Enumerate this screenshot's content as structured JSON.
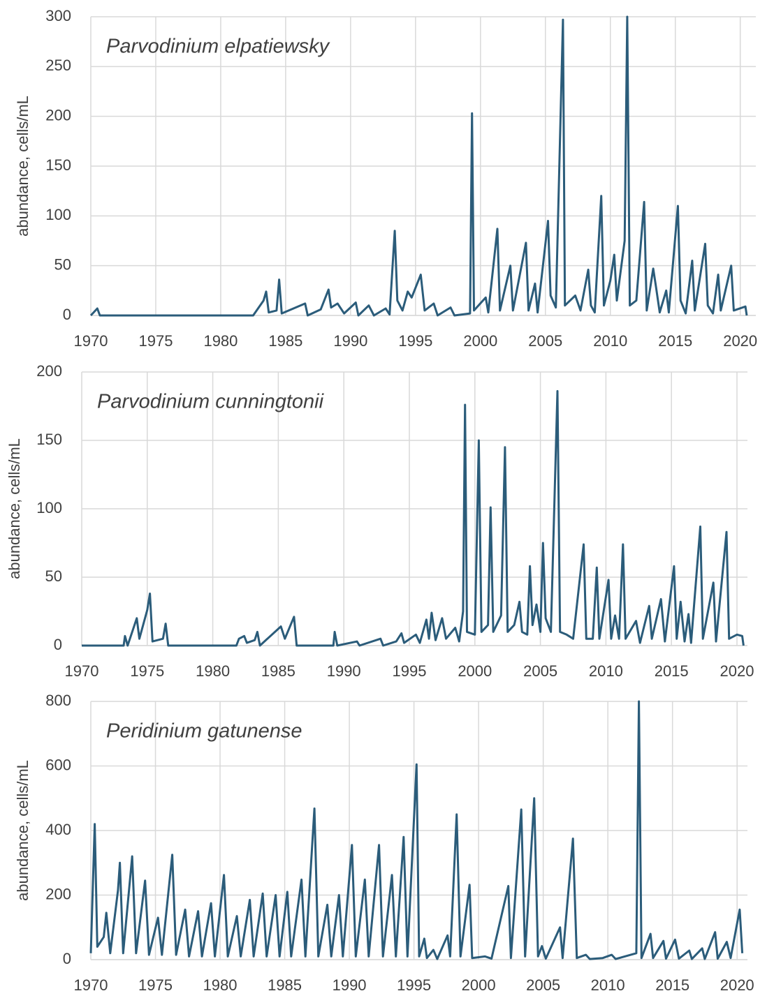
{
  "chart_data": [
    {
      "type": "line",
      "title": "Parvodinium elpatiewsky",
      "ylabel": "abundance, cells/mL",
      "color": "#2b5c7a",
      "grid": true,
      "xlim": [
        1970,
        2021.2
      ],
      "xticks": [
        1970,
        1975,
        1980,
        1985,
        1990,
        1995,
        2000,
        2005,
        2010,
        2015,
        2020
      ],
      "ylim": [
        0,
        300
      ],
      "yticks": [
        0,
        50,
        100,
        150,
        200,
        250,
        300
      ],
      "x": [
        1970.0,
        1970.5,
        1970.7,
        1982.5,
        1983.3,
        1983.5,
        1983.7,
        1984.3,
        1984.5,
        1984.7,
        1986.5,
        1986.7,
        1987.7,
        1988.3,
        1988.5,
        1989.0,
        1989.5,
        1990.4,
        1990.6,
        1991.4,
        1991.8,
        1992.7,
        1993.0,
        1993.4,
        1993.6,
        1994.0,
        1994.4,
        1994.7,
        1995.4,
        1995.7,
        1996.4,
        1996.7,
        1997.7,
        1998.0,
        1999.2,
        1999.35,
        1999.5,
        2000.4,
        2000.6,
        2001.3,
        2001.5,
        2002.3,
        2002.5,
        2003.5,
        2003.7,
        2004.2,
        2004.4,
        2005.2,
        2005.4,
        2005.8,
        2006.35,
        2006.5,
        2007.3,
        2007.7,
        2008.3,
        2008.5,
        2008.8,
        2009.3,
        2009.5,
        2010.0,
        2010.3,
        2010.5,
        2011.1,
        2011.3,
        2011.5,
        2012.0,
        2012.6,
        2012.8,
        2013.3,
        2013.5,
        2013.8,
        2014.3,
        2014.5,
        2015.2,
        2015.4,
        2015.8,
        2016.3,
        2016.5,
        2017.3,
        2017.5,
        2017.9,
        2018.3,
        2018.5,
        2019.3,
        2019.5,
        2020.4,
        2020.5
      ],
      "values": [
        0,
        7,
        0,
        0,
        15,
        24,
        3,
        5,
        36,
        2,
        12,
        0,
        6,
        26,
        8,
        12,
        2,
        13,
        0,
        10,
        0,
        7,
        1,
        85,
        15,
        5,
        24,
        18,
        41,
        5,
        12,
        0,
        8,
        0,
        2,
        203,
        5,
        18,
        3,
        87,
        5,
        50,
        5,
        73,
        5,
        32,
        3,
        95,
        20,
        8,
        297,
        10,
        20,
        5,
        46,
        10,
        3,
        120,
        10,
        35,
        61,
        15,
        75,
        300,
        10,
        15,
        114,
        5,
        47,
        30,
        3,
        25,
        3,
        110,
        15,
        2,
        55,
        5,
        72,
        10,
        2,
        41,
        5,
        50,
        5,
        9,
        0
      ]
    },
    {
      "type": "line",
      "title": "Parvodinium cunningtonii",
      "ylabel": "abundance, cells/mL",
      "color": "#2b5c7a",
      "grid": true,
      "xlim": [
        1970,
        2020.8
      ],
      "xticks": [
        1970,
        1975,
        1980,
        1985,
        1990,
        1995,
        2000,
        2005,
        2010,
        2015,
        2020
      ],
      "ylim": [
        0,
        200
      ],
      "yticks": [
        0,
        50,
        100,
        150,
        200
      ],
      "x": [
        1970.0,
        1973.2,
        1973.3,
        1973.5,
        1974.2,
        1974.4,
        1975.0,
        1975.2,
        1975.4,
        1976.2,
        1976.4,
        1976.6,
        1981.8,
        1982.0,
        1982.4,
        1982.6,
        1983.2,
        1983.4,
        1983.6,
        1985.2,
        1985.5,
        1986.2,
        1986.4,
        1989.2,
        1989.3,
        1989.5,
        1991.0,
        1991.2,
        1992.8,
        1993.0,
        1994.0,
        1994.4,
        1994.6,
        1995.5,
        1995.8,
        1996.3,
        1996.5,
        1996.7,
        1997.0,
        1997.5,
        1997.8,
        1998.5,
        1998.8,
        1999.1,
        1999.25,
        1999.4,
        2000.0,
        2000.3,
        2000.5,
        2001.0,
        2001.2,
        2001.4,
        2002.0,
        2002.3,
        2002.5,
        2003.0,
        2003.4,
        2003.6,
        2004.0,
        2004.2,
        2004.4,
        2004.7,
        2005.0,
        2005.2,
        2005.4,
        2005.8,
        2006.3,
        2006.5,
        2007.0,
        2007.5,
        2008.3,
        2008.5,
        2009.0,
        2009.3,
        2009.5,
        2010.2,
        2010.4,
        2010.7,
        2011.0,
        2011.3,
        2011.5,
        2012.3,
        2012.6,
        2013.3,
        2013.5,
        2014.2,
        2014.5,
        2015.2,
        2015.4,
        2015.7,
        2016.0,
        2016.3,
        2016.5,
        2017.2,
        2017.4,
        2018.2,
        2018.4,
        2019.2,
        2019.4,
        2020.0,
        2020.4,
        2020.5
      ],
      "values": [
        0,
        0,
        7,
        0,
        20,
        5,
        26,
        38,
        3,
        5,
        16,
        0,
        0,
        5,
        7,
        2,
        4,
        10,
        0,
        14,
        5,
        21,
        0,
        0,
        10,
        0,
        3,
        0,
        5,
        0,
        3,
        9,
        2,
        8,
        2,
        19,
        5,
        24,
        4,
        20,
        5,
        13,
        3,
        25,
        176,
        10,
        8,
        150,
        10,
        15,
        101,
        10,
        22,
        145,
        10,
        15,
        32,
        10,
        8,
        58,
        15,
        30,
        10,
        75,
        20,
        10,
        186,
        10,
        8,
        5,
        74,
        5,
        5,
        57,
        5,
        48,
        5,
        22,
        5,
        74,
        5,
        18,
        2,
        29,
        5,
        34,
        3,
        58,
        5,
        32,
        3,
        23,
        2,
        87,
        5,
        46,
        3,
        83,
        5,
        8,
        7,
        0
      ]
    },
    {
      "type": "line",
      "title": "Peridinium gatunense",
      "ylabel": "abundance, cells/mL",
      "color": "#2b5c7a",
      "grid": true,
      "xlim": [
        1970,
        2020.8
      ],
      "xticks": [
        1970,
        1975,
        1980,
        1985,
        1990,
        1995,
        2000,
        2005,
        2010,
        2015,
        2020
      ],
      "ylim": [
        0,
        800
      ],
      "yticks": [
        0,
        200,
        400,
        600,
        800
      ],
      "x": [
        1970.0,
        1970.3,
        1970.5,
        1971.0,
        1971.2,
        1971.5,
        1972.1,
        1972.25,
        1972.5,
        1973.2,
        1973.5,
        1974.2,
        1974.5,
        1975.2,
        1975.5,
        1976.3,
        1976.6,
        1977.3,
        1977.6,
        1978.3,
        1978.6,
        1979.3,
        1979.6,
        1980.3,
        1980.6,
        1981.3,
        1981.6,
        1982.3,
        1982.6,
        1983.3,
        1983.6,
        1984.3,
        1984.6,
        1985.2,
        1985.5,
        1986.3,
        1986.6,
        1987.3,
        1987.6,
        1988.3,
        1988.6,
        1989.2,
        1989.5,
        1990.2,
        1990.5,
        1991.2,
        1991.5,
        1992.3,
        1992.6,
        1993.3,
        1993.6,
        1994.2,
        1994.5,
        1995.2,
        1995.4,
        1995.8,
        1996.0,
        1996.5,
        1996.8,
        1997.6,
        1997.8,
        1998.3,
        1998.6,
        1999.3,
        1999.5,
        2000.5,
        2001.0,
        2002.3,
        2002.5,
        2003.3,
        2003.6,
        2004.3,
        2004.6,
        2004.9,
        2005.2,
        2006.3,
        2006.5,
        2007.3,
        2007.6,
        2008.3,
        2008.6,
        2009.6,
        2010.3,
        2010.6,
        2012.2,
        2012.4,
        2012.6,
        2013.3,
        2013.5,
        2014.3,
        2014.5,
        2015.2,
        2015.5,
        2016.3,
        2016.5,
        2017.3,
        2017.5,
        2018.3,
        2018.5,
        2019.2,
        2019.5,
        2020.2,
        2020.4
      ],
      "values": [
        20,
        420,
        40,
        70,
        145,
        20,
        215,
        300,
        20,
        320,
        20,
        245,
        15,
        130,
        15,
        325,
        15,
        155,
        10,
        150,
        10,
        175,
        10,
        262,
        10,
        135,
        10,
        185,
        10,
        205,
        10,
        200,
        10,
        210,
        10,
        248,
        10,
        468,
        10,
        170,
        10,
        200,
        10,
        355,
        10,
        248,
        10,
        355,
        10,
        262,
        10,
        380,
        10,
        605,
        10,
        65,
        5,
        30,
        2,
        75,
        10,
        450,
        10,
        232,
        5,
        10,
        3,
        228,
        5,
        465,
        10,
        500,
        10,
        42,
        3,
        100,
        5,
        375,
        5,
        15,
        2,
        5,
        15,
        2,
        20,
        800,
        5,
        80,
        5,
        58,
        3,
        62,
        3,
        28,
        2,
        35,
        2,
        85,
        3,
        55,
        5,
        155,
        20
      ]
    }
  ]
}
